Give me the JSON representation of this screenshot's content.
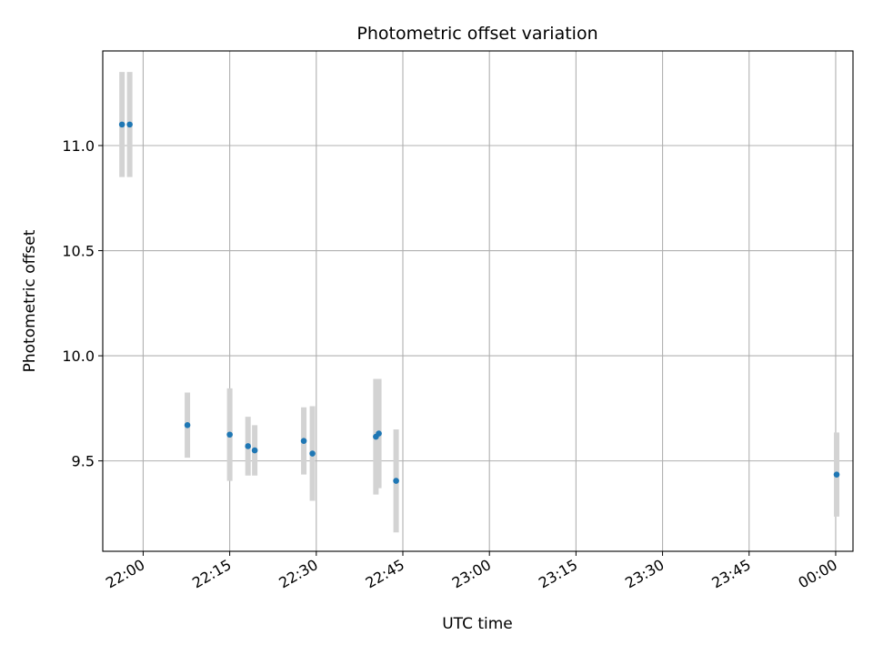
{
  "chart_data": {
    "type": "scatter",
    "title": "Photometric offset variation",
    "xlabel": "UTC time",
    "ylabel": "Photometric offset",
    "x_axis_type": "time",
    "xlim": [
      "21:53",
      "00:03"
    ],
    "ylim": [
      9.07,
      11.45
    ],
    "grid": true,
    "x_ticks": [
      "22:00",
      "22:15",
      "22:30",
      "22:45",
      "23:00",
      "23:15",
      "23:30",
      "23:45",
      "00:00"
    ],
    "y_ticks": [
      "9.5",
      "10.0",
      "10.5",
      "11.0"
    ],
    "marker_color": "#1f77b4",
    "errorbar_color": "#d3d3d3",
    "points": [
      {
        "x": "21:56:20",
        "y": 11.1,
        "yerr": 0.25
      },
      {
        "x": "21:57:40",
        "y": 11.1,
        "yerr": 0.25
      },
      {
        "x": "22:07:40",
        "y": 9.67,
        "yerr": 0.155
      },
      {
        "x": "22:15:00",
        "y": 9.625,
        "yerr": 0.22
      },
      {
        "x": "22:18:10",
        "y": 9.57,
        "yerr": 0.14
      },
      {
        "x": "22:19:20",
        "y": 9.55,
        "yerr": 0.12
      },
      {
        "x": "22:27:50",
        "y": 9.595,
        "yerr": 0.16
      },
      {
        "x": "22:29:20",
        "y": 9.535,
        "yerr": 0.225
      },
      {
        "x": "22:40:20",
        "y": 9.615,
        "yerr": 0.275
      },
      {
        "x": "22:40:50",
        "y": 9.63,
        "yerr": 0.26
      },
      {
        "x": "22:43:50",
        "y": 9.405,
        "yerr": 0.245
      },
      {
        "x": "00:00:10",
        "y": 9.435,
        "yerr": 0.2
      }
    ]
  }
}
